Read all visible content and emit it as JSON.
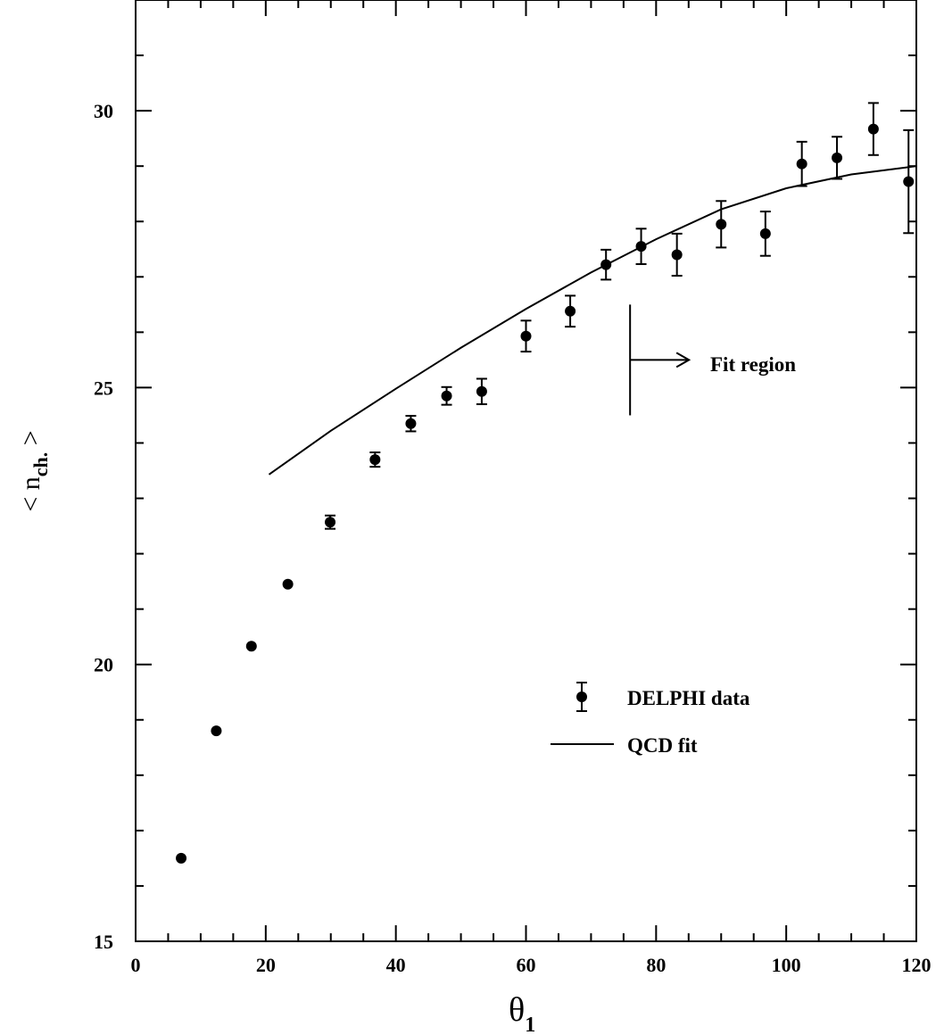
{
  "chart_data": {
    "type": "scatter",
    "xlabel": "θ",
    "xlabel_sub": "1",
    "ylabel_prefix": "< n",
    "ylabel_sub": "ch.",
    "ylabel_suffix": " >",
    "xlim": [
      0,
      120
    ],
    "ylim": [
      15,
      32
    ],
    "x_ticks": [
      0,
      20,
      40,
      60,
      80,
      100,
      120
    ],
    "y_ticks": [
      15,
      20,
      25,
      30
    ],
    "x_minor_step": 5,
    "y_minor_step": 1,
    "grid": false,
    "legend_position": "lower-right",
    "annotation": {
      "text": "Fit region",
      "x": 76
    },
    "series": [
      {
        "name": "DELPHI data",
        "kind": "points-with-errors",
        "points": [
          {
            "x": 7,
            "y": 16.5,
            "err": 0
          },
          {
            "x": 12.4,
            "y": 18.8,
            "err": 0
          },
          {
            "x": 17.8,
            "y": 20.33,
            "err": 0
          },
          {
            "x": 23.4,
            "y": 21.45,
            "err": 0
          },
          {
            "x": 29.9,
            "y": 22.57,
            "err": 0.12
          },
          {
            "x": 36.8,
            "y": 23.7,
            "err": 0.13
          },
          {
            "x": 42.3,
            "y": 24.35,
            "err": 0.14
          },
          {
            "x": 47.8,
            "y": 24.85,
            "err": 0.16
          },
          {
            "x": 53.2,
            "y": 24.93,
            "err": 0.23
          },
          {
            "x": 60,
            "y": 25.93,
            "err": 0.28
          },
          {
            "x": 66.8,
            "y": 26.38,
            "err": 0.28
          },
          {
            "x": 72.3,
            "y": 27.22,
            "err": 0.27
          },
          {
            "x": 77.7,
            "y": 27.55,
            "err": 0.32
          },
          {
            "x": 83.2,
            "y": 27.4,
            "err": 0.38
          },
          {
            "x": 90,
            "y": 27.95,
            "err": 0.42
          },
          {
            "x": 96.8,
            "y": 27.78,
            "err": 0.4
          },
          {
            "x": 102.4,
            "y": 29.04,
            "err": 0.4
          },
          {
            "x": 107.8,
            "y": 29.15,
            "err": 0.38
          },
          {
            "x": 113.4,
            "y": 29.67,
            "err": 0.47
          },
          {
            "x": 118.8,
            "y": 28.72,
            "err": 0.93
          }
        ]
      },
      {
        "name": "QCD fit",
        "kind": "line",
        "points": [
          {
            "x": 20.5,
            "y": 23.43
          },
          {
            "x": 30,
            "y": 24.22
          },
          {
            "x": 40,
            "y": 24.98
          },
          {
            "x": 50,
            "y": 25.72
          },
          {
            "x": 60,
            "y": 26.42
          },
          {
            "x": 70,
            "y": 27.08
          },
          {
            "x": 80,
            "y": 27.68
          },
          {
            "x": 90,
            "y": 28.22
          },
          {
            "x": 100,
            "y": 28.6
          },
          {
            "x": 110,
            "y": 28.85
          },
          {
            "x": 120,
            "y": 29.0
          }
        ]
      }
    ]
  }
}
